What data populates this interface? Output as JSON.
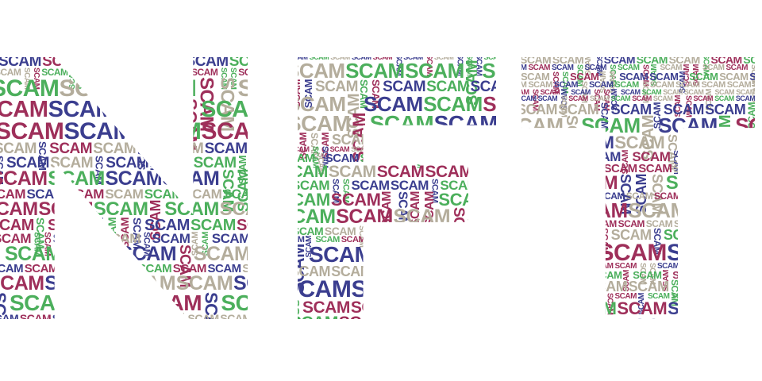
{
  "word": "SCAM",
  "letters": [
    "N",
    "F",
    "T"
  ],
  "palette": [
    "#3b3e8f",
    "#4caf5c",
    "#9e2f5a",
    "#b4ad9c"
  ]
}
